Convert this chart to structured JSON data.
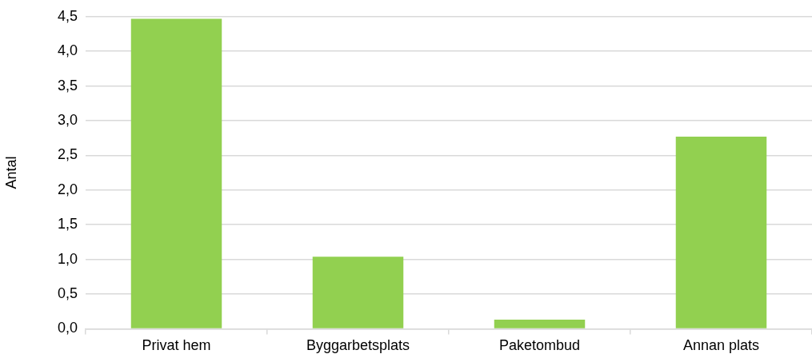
{
  "chart_data": {
    "type": "bar",
    "ylabel": "Antal",
    "categories": [
      "Privat hem",
      "Byggarbetsplats",
      "Paketombud",
      "Annan plats"
    ],
    "values": [
      4.47,
      1.04,
      0.13,
      2.77
    ],
    "color": "#92d050",
    "ylim": [
      0,
      4.5
    ],
    "yticks": [
      {
        "value": 0,
        "label": "0,0"
      },
      {
        "value": 0.5,
        "label": "0,5"
      },
      {
        "value": 1,
        "label": "1,0"
      },
      {
        "value": 1.5,
        "label": "1,5"
      },
      {
        "value": 2,
        "label": "2,0"
      },
      {
        "value": 2.5,
        "label": "2,5"
      },
      {
        "value": 3,
        "label": "3,0"
      },
      {
        "value": 3.5,
        "label": "3,5"
      },
      {
        "value": 4,
        "label": "4,0"
      },
      {
        "value": 4.5,
        "label": "4,5"
      }
    ],
    "grid": "y"
  }
}
